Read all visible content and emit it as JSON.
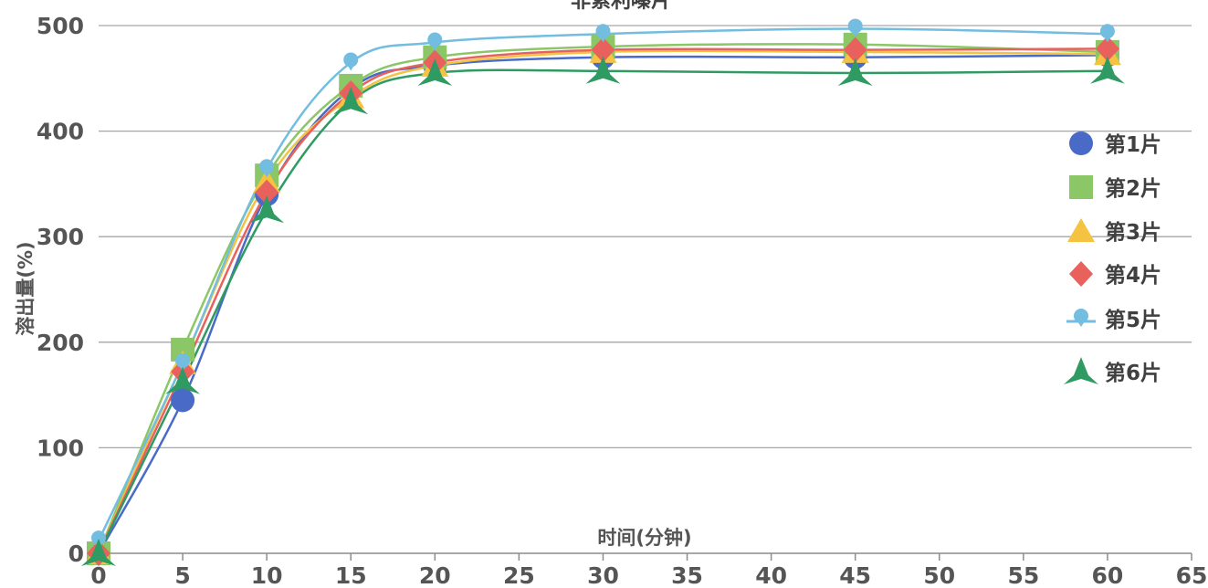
{
  "chart_data": {
    "type": "line",
    "title": "非索利嗪片",
    "xlabel": "时间(分钟)",
    "ylabel": "溶出量(%)",
    "xlim": [
      0,
      65
    ],
    "ylim": [
      0,
      500
    ],
    "xticks": [
      0,
      5,
      10,
      15,
      20,
      25,
      30,
      35,
      40,
      45,
      50,
      55,
      60,
      65
    ],
    "yticks": [
      0,
      100,
      200,
      300,
      400,
      500
    ],
    "grid": "horizontal",
    "legend_position": "right",
    "x": [
      0,
      5,
      10,
      15,
      20,
      30,
      45,
      60
    ],
    "series": [
      {
        "name": "第1片",
        "color": "#4a6ac8",
        "marker": "circle",
        "values": [
          0,
          145,
          340,
          440,
          462,
          470,
          470,
          472
        ]
      },
      {
        "name": "第2片",
        "color": "#8bc766",
        "marker": "square",
        "values": [
          0,
          193,
          358,
          443,
          470,
          480,
          482,
          475
        ]
      },
      {
        "name": "第3片",
        "color": "#f5c242",
        "marker": "triangle",
        "values": [
          0,
          180,
          352,
          432,
          462,
          475,
          475,
          473
        ]
      },
      {
        "name": "第4片",
        "color": "#e8615d",
        "marker": "diamond",
        "values": [
          0,
          172,
          342,
          436,
          465,
          477,
          477,
          478
        ]
      },
      {
        "name": "第5片",
        "color": "#72bde0",
        "marker": "pin",
        "values": [
          12,
          180,
          364,
          465,
          484,
          492,
          497,
          492
        ]
      },
      {
        "name": "第6片",
        "color": "#2f9a62",
        "marker": "star",
        "values": [
          0,
          163,
          325,
          428,
          455,
          457,
          455,
          457
        ]
      }
    ]
  }
}
